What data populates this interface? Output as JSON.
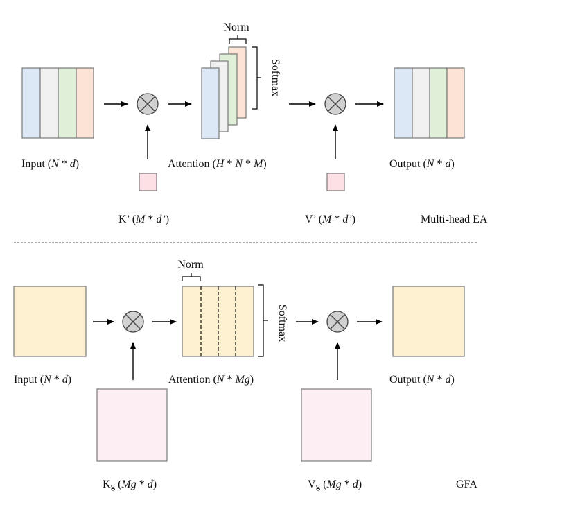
{
  "colors": {
    "blue": "#dce8f5",
    "gray": "#f0f0f0",
    "green": "#e0efd8",
    "peach": "#fbe3d5",
    "pink": "#fde0e6",
    "light_pink": "#fdeef3",
    "cream": "#fdf0d0",
    "border": "#7a7a7a"
  },
  "icons": {
    "multiply": "circle-times-icon",
    "arrow": "arrow-right-icon"
  },
  "top": {
    "input_label": {
      "main": "Input  (",
      "var1": "N",
      "mid": " * ",
      "var2": "d",
      "end": ")"
    },
    "attention_label": {
      "main": "Attention  (",
      "v1": "H",
      "s1": " * ",
      "v2": "N",
      "s2": " * ",
      "v3": "M",
      "end": ")"
    },
    "output_label": {
      "main": "Output  (",
      "var1": "N",
      "mid": " * ",
      "var2": "d",
      "end": ")"
    },
    "k_label": {
      "main": "K’ (",
      "v1": "M",
      "mid": " * ",
      "v2": "d’",
      "end": ")"
    },
    "v_label": {
      "main": "V’ (",
      "v1": "M",
      "mid": " * ",
      "v2": "d’",
      "end": ")"
    },
    "norm": "Norm",
    "softmax": "Softmax",
    "title": "Multi-head  EA"
  },
  "bottom": {
    "input_label": {
      "main": "Input  (",
      "var1": "N",
      "mid": " * ",
      "var2": "d",
      "end": ")"
    },
    "attention_label": {
      "main": "Attention (",
      "v1": "N",
      "mid": " * ",
      "v2": "Mg",
      "end": ")"
    },
    "output_label": {
      "main": "Output  (",
      "var1": "N",
      "mid": " * ",
      "var2": "d",
      "end": ")"
    },
    "k_label": {
      "main": "K",
      "sub": "g",
      "open": " (",
      "v1": "Mg",
      "mid": " * ",
      "v2": "d",
      "end": ")"
    },
    "v_label": {
      "main": "V",
      "sub": "g",
      "open": " (",
      "v1": "Mg",
      "mid": " * ",
      "v2": "d",
      "end": ")"
    },
    "norm": "Norm",
    "softmax": "Softmax",
    "title": "GFA"
  }
}
